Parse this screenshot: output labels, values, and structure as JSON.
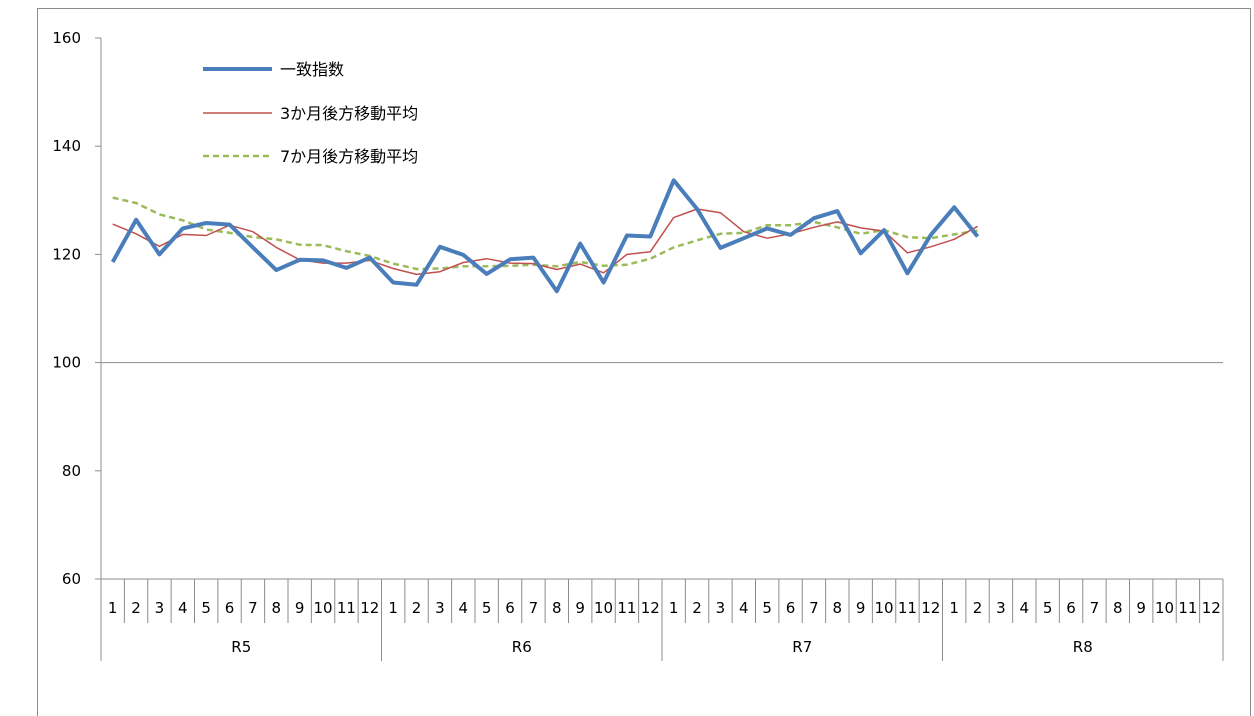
{
  "chart_data": {
    "type": "line",
    "title": "",
    "xlabel": "",
    "ylabel": "",
    "ylim": [
      60,
      160
    ],
    "yticks": [
      60,
      80,
      100,
      120,
      140,
      160
    ],
    "gridlines": [
      100
    ],
    "legend_position": "top-left",
    "month_labels": [
      "1",
      "2",
      "3",
      "4",
      "5",
      "6",
      "7",
      "8",
      "9",
      "10",
      "11",
      "12",
      "1",
      "2",
      "3",
      "4",
      "5",
      "6",
      "7",
      "8",
      "9",
      "10",
      "11",
      "12",
      "1",
      "2",
      "3",
      "4",
      "5",
      "6",
      "7",
      "8",
      "9",
      "10",
      "11",
      "12",
      "1",
      "2",
      "3",
      "4",
      "5",
      "6",
      "7",
      "8",
      "9",
      "10",
      "11",
      "12"
    ],
    "year_labels": [
      "R5",
      "R6",
      "R7",
      "R8"
    ],
    "series": [
      {
        "name": "一致指数",
        "color": "#4a7ebb",
        "style": "thick",
        "values": [
          118.6,
          126.4,
          120.0,
          124.8,
          125.8,
          125.5,
          121.3,
          117.1,
          119.0,
          118.9,
          117.5,
          119.4,
          114.8,
          114.4,
          121.4,
          119.9,
          116.4,
          119.1,
          119.4,
          113.2,
          122.0,
          114.8,
          123.5,
          123.3,
          133.7,
          128.4,
          121.2,
          123.0,
          124.8,
          123.6,
          126.7,
          128.0,
          120.2,
          124.5,
          116.5,
          123.6,
          128.7,
          123.3
        ]
      },
      {
        "name": "3か月後方移動平均",
        "color": "#c0504d",
        "style": "thin",
        "values": [
          125.6,
          123.8,
          121.5,
          123.7,
          123.5,
          125.4,
          124.2,
          121.3,
          119.0,
          118.4,
          118.4,
          118.9,
          117.4,
          116.3,
          116.8,
          118.5,
          119.2,
          118.4,
          118.3,
          117.2,
          118.2,
          116.6,
          120.0,
          120.5,
          126.8,
          128.4,
          127.7,
          124.2,
          123.0,
          123.8,
          125.0,
          126.0,
          124.9,
          124.3,
          120.3,
          121.4,
          122.8,
          125.2
        ]
      },
      {
        "name": "7か月後方移動平均",
        "color": "#9bbb59",
        "style": "dashed",
        "values": [
          130.5,
          129.5,
          127.4,
          126.3,
          124.6,
          124.0,
          123.2,
          122.8,
          121.8,
          121.7,
          120.6,
          119.7,
          118.3,
          117.3,
          117.4,
          117.8,
          117.8,
          117.9,
          118.1,
          117.8,
          118.6,
          117.9,
          118.1,
          119.2,
          121.3,
          122.6,
          123.8,
          124.0,
          125.4,
          125.4,
          126.0,
          125.0,
          123.8,
          124.5,
          123.2,
          123.0,
          123.7,
          124.4
        ]
      }
    ]
  }
}
